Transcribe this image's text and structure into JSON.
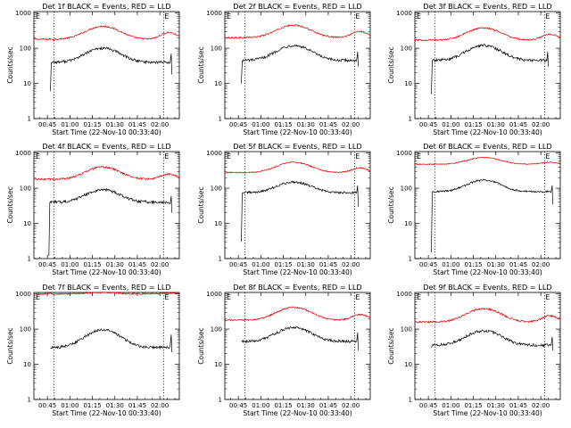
{
  "colors": {
    "events": "#000000",
    "lld": "#e00000",
    "axes": "#000000",
    "background": "#ffffff"
  },
  "common": {
    "ylabel": "Counts/sec",
    "xlabel": "Start Time (22-Nov-10 00:33:40)",
    "xticks": [
      "00:45",
      "01:00",
      "01:15",
      "01:30",
      "01:45",
      "02:00"
    ],
    "yticks": [
      "1",
      "10",
      "100",
      "1000"
    ],
    "corner_left": "E",
    "corner_right": "E",
    "x_range_min": [
      36,
      133
    ],
    "y_range": [
      1,
      1100
    ],
    "y_scale": "log",
    "marker_lines_min": [
      49.5,
      122.5
    ]
  },
  "chart_data": [
    {
      "type": "line",
      "title": "Det 1f BLACK = Events, RED = LLD",
      "series": [
        {
          "label": "Events",
          "start_min": 47,
          "end_min": 128,
          "start_value": 6,
          "base": 40,
          "peak": 100,
          "step_value": 70,
          "end_value": 18,
          "noise": 0.09
        },
        {
          "label": "LLD",
          "start_min": 36,
          "end_min": 133,
          "base": 180,
          "peak": 420,
          "tail": 280,
          "noise": 0.05
        }
      ]
    },
    {
      "type": "line",
      "title": "Det 2f BLACK = Events, RED = LLD",
      "series": [
        {
          "label": "Events",
          "start_min": 47,
          "end_min": 125,
          "start_value": 10,
          "base": 45,
          "peak": 120,
          "step_value": 80,
          "end_value": 30,
          "noise": 0.09
        },
        {
          "label": "LLD",
          "start_min": 36,
          "end_min": 133,
          "base": 200,
          "peak": 450,
          "tail": 300,
          "noise": 0.05
        }
      ]
    },
    {
      "type": "line",
      "title": "Det 3f BLACK = Events, RED = LLD",
      "series": [
        {
          "label": "Events",
          "start_min": 47,
          "end_min": 125,
          "start_value": 5,
          "base": 45,
          "peak": 120,
          "step_value": 80,
          "end_value": 30,
          "noise": 0.09
        },
        {
          "label": "LLD",
          "start_min": 36,
          "end_min": 133,
          "base": 170,
          "peak": 380,
          "tail": 250,
          "noise": 0.05
        }
      ]
    },
    {
      "type": "line",
      "title": "Det 4f BLACK = Events, RED = LLD",
      "series": [
        {
          "label": "Events",
          "start_min": 46,
          "end_min": 128,
          "start_value": 1.2,
          "base": 40,
          "peak": 90,
          "step_value": 60,
          "end_value": 20,
          "noise": 0.09
        },
        {
          "label": "LLD",
          "start_min": 36,
          "end_min": 133,
          "base": 180,
          "peak": 400,
          "tail": 250,
          "noise": 0.06
        }
      ]
    },
    {
      "type": "line",
      "title": "Det 5f BLACK = Events, RED = LLD",
      "series": [
        {
          "label": "Events",
          "start_min": 47,
          "end_min": 125,
          "start_value": 3,
          "base": 75,
          "peak": 150,
          "step_value": 120,
          "end_value": 30,
          "noise": 0.07
        },
        {
          "label": "LLD",
          "start_min": 36,
          "end_min": 133,
          "base": 280,
          "peak": 550,
          "tail": 380,
          "noise": 0.04
        }
      ]
    },
    {
      "type": "line",
      "title": "Det 6f BLACK = Events, RED = LLD",
      "series": [
        {
          "label": "Events",
          "start_min": 47,
          "end_min": 128,
          "start_value": 1.5,
          "base": 80,
          "peak": 170,
          "step_value": 120,
          "end_value": 35,
          "noise": 0.06
        },
        {
          "label": "LLD",
          "start_min": 36,
          "end_min": 133,
          "base": 480,
          "peak": 750,
          "tail": 550,
          "noise": 0.03
        }
      ]
    },
    {
      "type": "line",
      "title": "Det 7f BLACK = Events, RED = LLD",
      "series": [
        {
          "label": "Events",
          "start_min": 47,
          "end_min": 128,
          "start_value": 28,
          "base": 30,
          "peak": 95,
          "step_value": 70,
          "end_value": 22,
          "noise": 0.09
        },
        {
          "label": "LLD",
          "start_min": 36,
          "end_min": 133,
          "base": 1000,
          "peak": 1100,
          "tail": 1050,
          "noise": 0.05
        }
      ]
    },
    {
      "type": "line",
      "title": "Det 8f BLACK = Events, RED = LLD",
      "series": [
        {
          "label": "Events",
          "start_min": 47,
          "end_min": 125,
          "start_value": 45,
          "base": 45,
          "peak": 110,
          "step_value": 80,
          "end_value": 25,
          "noise": 0.09
        },
        {
          "label": "LLD",
          "start_min": 36,
          "end_min": 133,
          "base": 180,
          "peak": 420,
          "tail": 260,
          "noise": 0.05
        }
      ]
    },
    {
      "type": "line",
      "title": "Det 9f BLACK = Events, RED = LLD",
      "series": [
        {
          "label": "Events",
          "start_min": 47,
          "end_min": 128,
          "start_value": 30,
          "base": 35,
          "peak": 90,
          "step_value": 60,
          "end_value": 25,
          "noise": 0.09
        },
        {
          "label": "LLD",
          "start_min": 36,
          "end_min": 133,
          "base": 160,
          "peak": 380,
          "tail": 240,
          "noise": 0.06
        }
      ]
    }
  ]
}
